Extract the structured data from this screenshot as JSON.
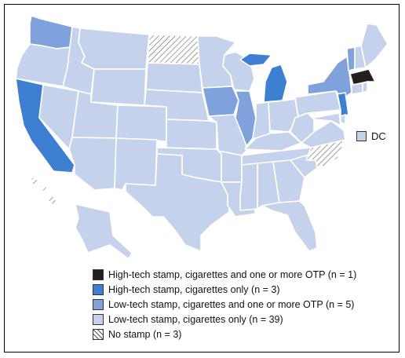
{
  "colors": {
    "high_tech_multi": "#231f20",
    "high_tech_cig": "#3d7fd0",
    "low_tech_multi": "#7fa1dc",
    "low_tech_cig": "#c5d2ec",
    "no_stamp": "hatch"
  },
  "legend": [
    {
      "label": "High-tech stamp, cigarettes and one or more OTP (n = 1)",
      "category": "high_tech_multi"
    },
    {
      "label": "High-tech stamp, cigarettes only (n = 3)",
      "category": "high_tech_cig"
    },
    {
      "label": "Low-tech stamp, cigarettes and one or more OTP (n = 5)",
      "category": "low_tech_multi"
    },
    {
      "label": "Low-tech stamp, cigarettes only (n = 39)",
      "category": "low_tech_cig"
    },
    {
      "label": "No stamp (n = 3)",
      "category": "no_stamp"
    }
  ],
  "dc": {
    "label": "DC",
    "category": "low_tech_cig"
  },
  "states": {
    "WA": "low_tech_multi",
    "OR": "low_tech_cig",
    "CA": "high_tech_cig",
    "NV": "low_tech_cig",
    "ID": "low_tech_cig",
    "MT": "low_tech_cig",
    "WY": "low_tech_cig",
    "UT": "low_tech_cig",
    "AZ": "low_tech_cig",
    "CO": "low_tech_cig",
    "NM": "low_tech_cig",
    "ND": "no_stamp",
    "SD": "low_tech_cig",
    "NE": "low_tech_cig",
    "KS": "low_tech_cig",
    "OK": "low_tech_cig",
    "TX": "low_tech_cig",
    "MN": "low_tech_cig",
    "IA": "low_tech_multi",
    "MO": "low_tech_cig",
    "AR": "low_tech_cig",
    "LA": "low_tech_cig",
    "WI": "low_tech_cig",
    "IL": "low_tech_multi",
    "MI": "high_tech_cig",
    "IN": "low_tech_cig",
    "OH": "low_tech_cig",
    "KY": "low_tech_cig",
    "TN": "low_tech_cig",
    "MS": "low_tech_cig",
    "AL": "low_tech_cig",
    "GA": "low_tech_cig",
    "FL": "low_tech_cig",
    "SC": "low_tech_cig",
    "NC": "no_stamp",
    "VA": "low_tech_cig",
    "WV": "low_tech_cig",
    "PA": "low_tech_cig",
    "NY": "low_tech_multi",
    "NJ": "high_tech_cig",
    "DE": "low_tech_cig",
    "MD": "low_tech_cig",
    "VT": "low_tech_multi",
    "NH": "low_tech_cig",
    "ME": "low_tech_cig",
    "MA": "high_tech_multi",
    "CT": "low_tech_cig",
    "RI": "low_tech_cig",
    "AK": "low_tech_cig",
    "HI": "no_stamp"
  }
}
